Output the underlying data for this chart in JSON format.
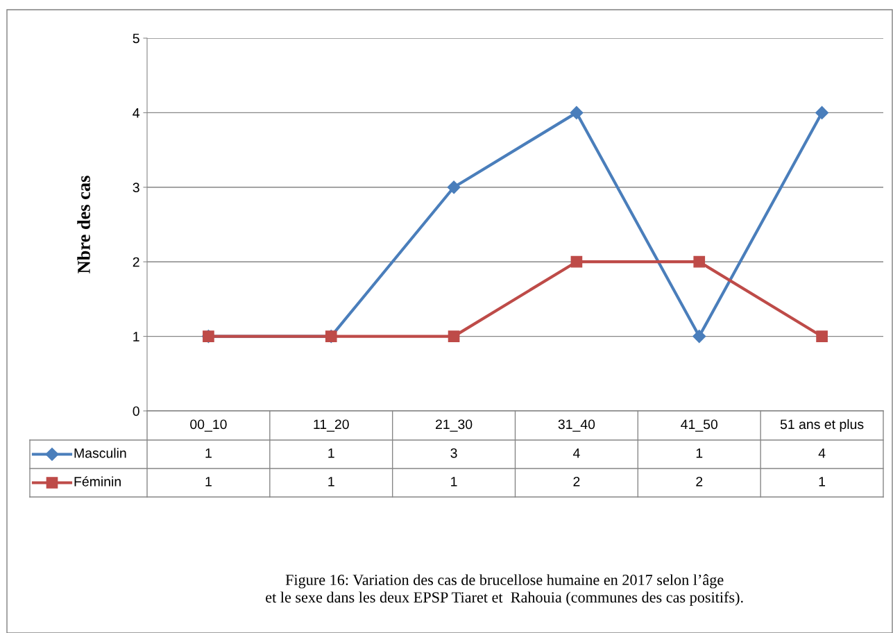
{
  "chart_data": {
    "type": "line",
    "ylabel": "Nbre des cas",
    "categories": [
      "00_10",
      "11_20",
      "21_30",
      "31_40",
      "41_50",
      "51 ans et plus"
    ],
    "series": [
      {
        "name": "Masculin",
        "color": "#4a7ebb",
        "marker": "diamond",
        "values": [
          1,
          1,
          3,
          4,
          1,
          4
        ]
      },
      {
        "name": "Féminin",
        "color": "#be4b48",
        "marker": "square",
        "values": [
          1,
          1,
          1,
          2,
          2,
          1
        ]
      }
    ],
    "ylim": [
      0,
      5
    ],
    "yticks": [
      0,
      1,
      2,
      3,
      4,
      5
    ],
    "grid": "y",
    "legend": "bottom",
    "data_labels": true,
    "line_style": "solid",
    "annotations": [
      "Figure 16: Variation des cas de brucellose humaine en 2017 selon l’âge\net le sexe dans les deux EPSP Tiaret et  Rahouia (communes des cas positifs)."
    ]
  }
}
